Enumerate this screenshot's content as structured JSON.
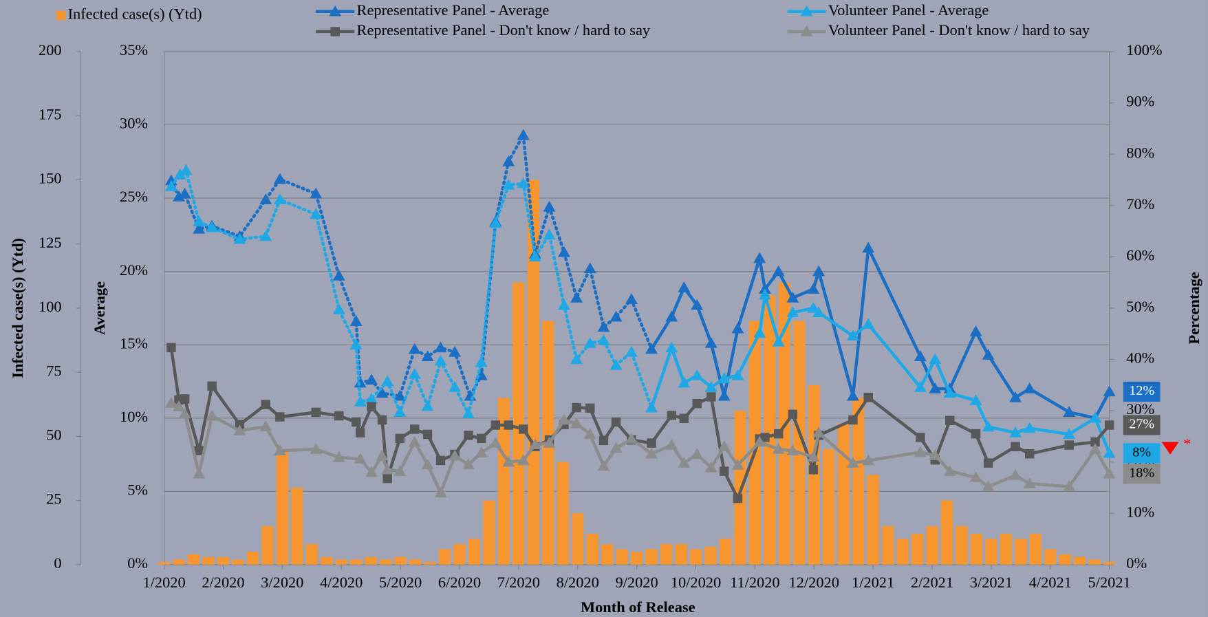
{
  "chart_data": {
    "type": "combo",
    "xlabel": "Month of Release",
    "xlim": [
      0,
      16
    ],
    "xticks": [
      {
        "value": 0,
        "label": "1/2020"
      },
      {
        "value": 1,
        "label": "2/2020"
      },
      {
        "value": 2,
        "label": "3/2020"
      },
      {
        "value": 3,
        "label": "4/2020"
      },
      {
        "value": 4,
        "label": "5/2020"
      },
      {
        "value": 5,
        "label": "6/2020"
      },
      {
        "value": 6,
        "label": "7/2020"
      },
      {
        "value": 7,
        "label": "8/2020"
      },
      {
        "value": 8,
        "label": "9/2020"
      },
      {
        "value": 9,
        "label": "10/2020"
      },
      {
        "value": 10,
        "label": "11/2020"
      },
      {
        "value": 11,
        "label": "12/2020"
      },
      {
        "value": 12,
        "label": "1/2021"
      },
      {
        "value": 13,
        "label": "2/2021"
      },
      {
        "value": 14,
        "label": "3/2021"
      },
      {
        "value": 15,
        "label": "4/2021"
      },
      {
        "value": 16,
        "label": "5/2021"
      }
    ],
    "ylabel": "Infected case(s) (Ytd)",
    "ylim": [
      0,
      200
    ],
    "yticks": [
      0,
      25,
      50,
      75,
      100,
      125,
      150,
      175,
      200
    ],
    "y3label": "Average",
    "y3lim": [
      0,
      35
    ],
    "y3ticks": [
      {
        "value": 0,
        "label": "0%"
      },
      {
        "value": 5,
        "label": "5%"
      },
      {
        "value": 10,
        "label": "10%"
      },
      {
        "value": 15,
        "label": "15%"
      },
      {
        "value": 20,
        "label": "20%"
      },
      {
        "value": 25,
        "label": "25%"
      },
      {
        "value": 30,
        "label": "30%"
      },
      {
        "value": 35,
        "label": "35%"
      }
    ],
    "y2label": "Percentage",
    "y2lim": [
      0,
      100
    ],
    "y2ticks": [
      {
        "value": 0,
        "label": "0%"
      },
      {
        "value": 10,
        "label": "10%"
      },
      {
        "value": 20,
        "label": "20%"
      },
      {
        "value": 30,
        "label": "30%"
      },
      {
        "value": 40,
        "label": "40%"
      },
      {
        "value": 50,
        "label": "50%"
      },
      {
        "value": 60,
        "label": "60%"
      },
      {
        "value": 70,
        "label": "70%"
      },
      {
        "value": 80,
        "label": "80%"
      },
      {
        "value": 90,
        "label": "90%"
      },
      {
        "value": 100,
        "label": "100%"
      }
    ],
    "grid": true,
    "bars": {
      "name": "Infected case(s) (Ytd)",
      "color": "#f7962f",
      "x": [
        0,
        0.25,
        0.5,
        0.75,
        1,
        1.25,
        1.5,
        1.75,
        2,
        2.25,
        2.5,
        2.75,
        3,
        3.25,
        3.5,
        3.75,
        4,
        4.25,
        4.5,
        4.75,
        5,
        5.25,
        5.5,
        5.75,
        6,
        6.25,
        6.5,
        6.75,
        7,
        7.25,
        7.5,
        7.75,
        8,
        8.25,
        8.5,
        8.75,
        9,
        9.25,
        9.5,
        9.75,
        10,
        10.25,
        10.5,
        10.75,
        11,
        11.25,
        11.5,
        11.75,
        12,
        12.25,
        12.5,
        12.75,
        13,
        13.25,
        13.5,
        13.75,
        14,
        14.25,
        14.5,
        14.75,
        15,
        15.25,
        15.5,
        15.75,
        16
      ],
      "values": [
        1,
        2,
        4,
        3,
        3,
        2,
        5,
        15,
        45,
        30,
        8,
        3,
        2,
        2,
        3,
        2,
        3,
        2,
        1,
        6,
        8,
        10,
        25,
        65,
        110,
        150,
        95,
        40,
        20,
        12,
        8,
        6,
        5,
        6,
        8,
        8,
        6,
        7,
        10,
        60,
        95,
        105,
        110,
        95,
        70,
        45,
        55,
        65,
        35,
        15,
        10,
        12,
        15,
        25,
        15,
        12,
        10,
        12,
        10,
        12,
        6,
        4,
        3,
        2,
        1
      ]
    },
    "series": [
      {
        "name": "Representative Panel - Average",
        "color": "#1a6fc4",
        "axis": "y3",
        "marker": "triangle",
        "dotted_until": 8.25,
        "end_label": "12%",
        "x": [
          0.12,
          0.25,
          0.35,
          0.59,
          0.81,
          1.28,
          1.72,
          1.96,
          2.57,
          2.96,
          3.25,
          3.32,
          3.51,
          3.69,
          3.99,
          4.24,
          4.46,
          4.68,
          4.92,
          5.18,
          5.37,
          5.61,
          5.83,
          6.08,
          6.28,
          6.52,
          6.77,
          6.98,
          7.21,
          7.44,
          7.65,
          7.91,
          8.25,
          8.59,
          8.8,
          9.02,
          9.26,
          9.48,
          9.71,
          10.08,
          10.17,
          10.4,
          10.64,
          10.99,
          11.08,
          11.66,
          11.92,
          12.8,
          13.05,
          13.3,
          13.74,
          13.95,
          14.41,
          14.65,
          15.32,
          15.76,
          16
        ],
        "values": [
          26.2,
          25.1,
          25.3,
          22.9,
          23.1,
          22.4,
          24.9,
          26.3,
          25.3,
          19.7,
          16.6,
          12.4,
          12.6,
          11.7,
          11.5,
          14.7,
          14.2,
          14.8,
          14.5,
          11.5,
          12.9,
          23.4,
          27.5,
          29.3,
          21.2,
          24.4,
          21.3,
          18.2,
          20.2,
          16.2,
          16.9,
          18.1,
          14.7,
          16.9,
          18.9,
          17.7,
          15.1,
          11.5,
          16.1,
          20.9,
          18.8,
          20.0,
          18.2,
          18.8,
          20.0,
          11.5,
          21.6,
          14.2,
          12.0,
          12.0,
          15.9,
          14.3,
          11.4,
          12.0,
          10.4,
          10.0,
          11.8
        ]
      },
      {
        "name": "Volunteer Panel - Average",
        "color": "#1ea8e6",
        "axis": "y3",
        "marker": "triangle",
        "dotted_until": 8.25,
        "end_label": "8%",
        "x": [
          0.12,
          0.27,
          0.37,
          0.59,
          0.81,
          1.28,
          1.72,
          1.96,
          2.57,
          2.96,
          3.25,
          3.32,
          3.51,
          3.78,
          3.99,
          4.24,
          4.46,
          4.68,
          4.92,
          5.15,
          5.37,
          5.61,
          5.83,
          6.08,
          6.28,
          6.52,
          6.77,
          6.98,
          7.21,
          7.44,
          7.65,
          7.91,
          8.25,
          8.59,
          8.8,
          9.02,
          9.26,
          9.48,
          9.71,
          10.08,
          10.17,
          10.4,
          10.64,
          10.99,
          11.08,
          11.66,
          11.92,
          12.8,
          13.05,
          13.3,
          13.74,
          13.95,
          14.41,
          14.65,
          15.32,
          15.76,
          16
        ],
        "values": [
          25.8,
          26.6,
          26.9,
          23.4,
          23.0,
          22.2,
          22.4,
          24.9,
          23.9,
          17.4,
          15.0,
          11.1,
          11.3,
          12.5,
          10.4,
          13.0,
          10.8,
          13.9,
          12.1,
          10.3,
          13.8,
          23.3,
          25.9,
          26.0,
          21.0,
          22.5,
          17.7,
          14.0,
          15.1,
          15.3,
          13.6,
          14.5,
          10.7,
          14.8,
          12.4,
          12.9,
          12.1,
          12.7,
          12.9,
          15.8,
          18.4,
          15.2,
          17.2,
          17.5,
          17.2,
          15.6,
          16.4,
          12.1,
          14.0,
          11.7,
          11.2,
          9.4,
          9.0,
          9.3,
          8.9,
          10.0,
          7.6
        ]
      },
      {
        "name": "Representative Panel - Don't know / hard to say",
        "color": "#595959",
        "axis": "y2",
        "marker": "square",
        "end_label": "27%",
        "x": [
          0.12,
          0.25,
          0.35,
          0.59,
          0.81,
          1.28,
          1.72,
          1.96,
          2.57,
          2.96,
          3.25,
          3.32,
          3.51,
          3.69,
          3.78,
          3.99,
          4.24,
          4.46,
          4.68,
          4.92,
          5.15,
          5.37,
          5.61,
          5.83,
          6.08,
          6.28,
          6.52,
          6.77,
          6.98,
          7.21,
          7.44,
          7.65,
          7.91,
          8.25,
          8.59,
          8.8,
          9.02,
          9.26,
          9.48,
          9.71,
          10.08,
          10.17,
          10.4,
          10.64,
          10.99,
          11.08,
          11.66,
          11.92,
          12.8,
          13.05,
          13.3,
          13.74,
          13.95,
          14.41,
          14.65,
          15.32,
          15.76,
          16
        ],
        "values": [
          42.3,
          32.1,
          32.3,
          22.2,
          34.8,
          27.3,
          31.2,
          28.8,
          29.7,
          29.0,
          27.8,
          25.7,
          30.8,
          28.2,
          16.8,
          24.6,
          26.4,
          25.4,
          20.3,
          21.5,
          25.2,
          24.6,
          27.2,
          27.2,
          26.4,
          23.0,
          24.3,
          27.3,
          30.6,
          30.5,
          24.2,
          27.8,
          24.3,
          23.7,
          29.1,
          28.5,
          31.4,
          32.7,
          18.2,
          12.9,
          24.5,
          24.8,
          25.5,
          29.3,
          18.5,
          25.2,
          28.2,
          32.6,
          24.8,
          20.4,
          28.1,
          25.5,
          19.8,
          23.0,
          21.6,
          23.3,
          23.9,
          27.2
        ]
      },
      {
        "name": "Volunteer Panel - Don't know / hard to say",
        "color": "#8c8c8c",
        "axis": "y2",
        "marker": "triangle",
        "end_label": "18%",
        "x": [
          0.12,
          0.25,
          0.35,
          0.59,
          0.81,
          1.28,
          1.72,
          1.96,
          2.57,
          2.96,
          3.32,
          3.51,
          3.69,
          3.78,
          3.99,
          4.24,
          4.46,
          4.68,
          4.92,
          5.15,
          5.37,
          5.61,
          5.83,
          6.08,
          6.28,
          6.52,
          6.77,
          6.98,
          7.21,
          7.44,
          7.65,
          7.91,
          8.25,
          8.59,
          8.8,
          9.02,
          9.26,
          9.48,
          9.71,
          10.08,
          10.4,
          10.64,
          10.99,
          11.08,
          11.66,
          11.92,
          12.8,
          13.05,
          13.3,
          13.74,
          13.95,
          14.41,
          14.65,
          15.32,
          15.76,
          16
        ],
        "values": [
          31.5,
          30.8,
          29.4,
          17.7,
          29.0,
          26.1,
          26.9,
          22.2,
          22.5,
          20.9,
          20.6,
          18.0,
          21.2,
          18.5,
          18.2,
          23.9,
          19.5,
          14.0,
          21.2,
          19.5,
          21.8,
          23.7,
          20.0,
          20.3,
          23.4,
          23.7,
          28.2,
          27.5,
          25.4,
          19.2,
          22.7,
          24.5,
          21.6,
          23.3,
          19.8,
          21.5,
          18.9,
          23.0,
          19.4,
          23.9,
          22.5,
          22.2,
          21.0,
          25.7,
          19.8,
          20.3,
          21.9,
          21.3,
          18.2,
          17.0,
          15.2,
          17.4,
          15.8,
          15.2,
          22.5,
          17.7
        ]
      }
    ],
    "annotation": "*"
  }
}
